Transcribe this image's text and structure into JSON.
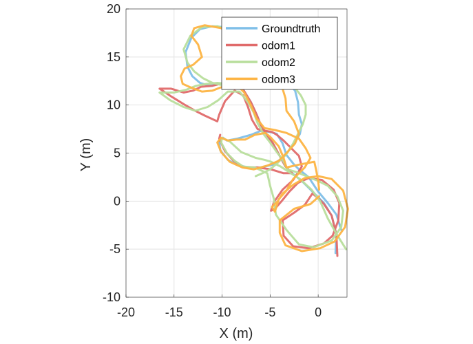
{
  "chart_data": {
    "type": "line",
    "xlabel": "X (m)",
    "ylabel": "Y (m)",
    "xlim": [
      -20,
      3
    ],
    "ylim": [
      -10,
      20
    ],
    "xticks": [
      -20,
      -15,
      -10,
      -5,
      0
    ],
    "yticks": [
      -10,
      -5,
      0,
      5,
      10,
      15,
      20
    ],
    "grid": true,
    "legend_position": "top-right",
    "series": [
      {
        "name": "Groundtruth",
        "color": "#7fbfe8",
        "points": [
          [
            1.8,
            -5.4
          ],
          [
            1.9,
            -3.5
          ],
          [
            1.4,
            -1.5
          ],
          [
            0.6,
            -0.2
          ],
          [
            0,
            0.4
          ],
          [
            -0.6,
            1
          ],
          [
            -1.6,
            2
          ],
          [
            -2.7,
            2.9
          ],
          [
            -3.4,
            3.6
          ],
          [
            -4.0,
            4.7
          ],
          [
            -4.7,
            6.0
          ],
          [
            -5.4,
            7.0
          ],
          [
            -6.0,
            8.0
          ],
          [
            -6.4,
            9.0
          ],
          [
            -7.0,
            10.3
          ],
          [
            -7.8,
            11.6
          ],
          [
            -8.6,
            12.0
          ],
          [
            -9.2,
            12.3
          ],
          [
            -10.2,
            12.2
          ],
          [
            -11.3,
            12.0
          ],
          [
            -12.3,
            12.3
          ],
          [
            -13.1,
            13.0
          ],
          [
            -13.6,
            14.0
          ],
          [
            -13.8,
            15.5
          ],
          [
            -13.2,
            17.0
          ],
          [
            -12.3,
            17.9
          ],
          [
            -11.0,
            18.2
          ],
          [
            -9.7,
            18.1
          ],
          [
            -8.6,
            17.4
          ],
          [
            -8.0,
            16.3
          ],
          [
            -7.5,
            15.0
          ],
          [
            -6.7,
            14.0
          ],
          [
            -5.6,
            13.0
          ],
          [
            -4.4,
            12.6
          ],
          [
            -3.2,
            12.3
          ],
          [
            -2.4,
            11.5
          ],
          [
            -2.1,
            10.3
          ],
          [
            -2.0,
            9.0
          ],
          [
            -1.7,
            8.0
          ],
          [
            -1.9,
            7.0
          ],
          [
            -2.6,
            5.8
          ],
          [
            -3.6,
            4.6
          ],
          [
            -4.7,
            3.8
          ],
          [
            -6.0,
            3.5
          ],
          [
            -7.3,
            3.5
          ],
          [
            -8.5,
            3.8
          ],
          [
            -9.4,
            4.3
          ],
          [
            -10.2,
            5.3
          ],
          [
            -10.3,
            6.3
          ],
          [
            -9.9,
            6.6
          ],
          [
            -9.5,
            6.3
          ],
          [
            -8.4,
            6.5
          ],
          [
            -7.0,
            6.9
          ],
          [
            -6.0,
            7.3
          ],
          [
            -5.0,
            7.2
          ],
          [
            -4.3,
            7.0
          ],
          [
            -3.7,
            6.0
          ],
          [
            -3.3,
            4.8
          ],
          [
            -2.5,
            3.8
          ],
          [
            -2.0,
            3.3
          ],
          [
            -1.0,
            2.5
          ],
          [
            0.0,
            1.0
          ],
          [
            1.0,
            -0.2
          ],
          [
            1.9,
            -1.4
          ],
          [
            2.4,
            -3.0
          ]
        ]
      },
      {
        "name": "odom1",
        "color": "#e06a6a",
        "points": [
          [
            2.0,
            -5.7
          ],
          [
            1.9,
            -3.5
          ],
          [
            1.4,
            -1.5
          ],
          [
            0.6,
            -0.3
          ],
          [
            0,
            0.3
          ],
          [
            -0.6,
            0.8
          ],
          [
            -1.4,
            -0.4
          ],
          [
            -2.5,
            -1.2
          ],
          [
            -3.7,
            -2.0
          ],
          [
            -3.6,
            -3.6
          ],
          [
            -2.6,
            -4.7
          ],
          [
            -1.0,
            -4.9
          ],
          [
            0.6,
            -4.4
          ],
          [
            1.5,
            -3.6
          ],
          [
            2.1,
            -2.0
          ],
          [
            2.2,
            -0.2
          ],
          [
            1.6,
            1.2
          ],
          [
            0.4,
            2.2
          ],
          [
            -1.0,
            2.4
          ],
          [
            -2.1,
            1.9
          ],
          [
            -3.0,
            1.0
          ],
          [
            -3.8,
            0
          ],
          [
            -4.5,
            -0.8
          ],
          [
            -4.9,
            -1.0
          ],
          [
            -4.6,
            -0.1
          ],
          [
            -3.7,
            1.2
          ],
          [
            -2.6,
            2.2
          ],
          [
            -1.7,
            3.6
          ],
          [
            -2.0,
            4.7
          ],
          [
            -2.8,
            5.5
          ],
          [
            -3.6,
            6.3
          ],
          [
            -4.3,
            6.9
          ],
          [
            -4.8,
            7.2
          ],
          [
            -5.4,
            7.3
          ],
          [
            -6.3,
            7.5
          ],
          [
            -6.9,
            8.5
          ],
          [
            -7.3,
            9.8
          ],
          [
            -7.8,
            11.0
          ],
          [
            -8.7,
            11.5
          ],
          [
            -9.7,
            10.4
          ],
          [
            -10.3,
            9.0
          ],
          [
            -10.5,
            8.3
          ],
          [
            -11.8,
            8.9
          ],
          [
            -12.8,
            9.4
          ],
          [
            -14.0,
            10.1
          ],
          [
            -15.3,
            10.9
          ],
          [
            -16.5,
            11.7
          ],
          [
            -15.3,
            11.7
          ],
          [
            -14.0,
            11.3
          ],
          [
            -13.0,
            11.5
          ],
          [
            -12.2,
            11.9
          ],
          [
            -11.0,
            12.0
          ],
          [
            -10.2,
            12.2
          ],
          [
            -9.2,
            12.3
          ],
          [
            -8.5,
            12.0
          ],
          [
            -7.8,
            11.6
          ],
          [
            -7.0,
            10.3
          ],
          [
            -6.4,
            9.0
          ],
          [
            -6.0,
            8.0
          ],
          [
            -5.4,
            7.0
          ],
          [
            -4.7,
            6.0
          ],
          [
            -4.0,
            4.7
          ],
          [
            -3.4,
            3.6
          ],
          [
            -2.7,
            2.9
          ],
          [
            -3.6,
            2.9
          ],
          [
            -4.9,
            3.3
          ],
          [
            -6.3,
            3.5
          ],
          [
            -7.7,
            3.5
          ],
          [
            -8.8,
            4.2
          ],
          [
            -9.7,
            5.2
          ],
          [
            -10.3,
            6.5
          ],
          [
            -10.2,
            6.9
          ]
        ]
      },
      {
        "name": "odom2",
        "color": "#b8de9c",
        "points": [
          [
            2.9,
            -5.0
          ],
          [
            1.9,
            -3.4
          ],
          [
            1.0,
            -1.8
          ],
          [
            0.2,
            0.0
          ],
          [
            -0.7,
            1.2
          ],
          [
            -1.9,
            2.3
          ],
          [
            -3.0,
            3.0
          ],
          [
            -3.9,
            3.6
          ],
          [
            -4.9,
            4.1
          ],
          [
            -5.6,
            4.3
          ],
          [
            -6.5,
            4.5
          ],
          [
            -8.0,
            5.1
          ],
          [
            -9.2,
            6.2
          ],
          [
            -10.0,
            6.6
          ],
          [
            -10.1,
            6.1
          ],
          [
            -9.5,
            5.0
          ],
          [
            -8.7,
            4.2
          ],
          [
            -7.8,
            3.6
          ],
          [
            -6.6,
            3.5
          ],
          [
            -5.3,
            2.9
          ],
          [
            -5.0,
            1.6
          ],
          [
            -4.6,
            0.2
          ],
          [
            -4.4,
            -1.4
          ],
          [
            -3.3,
            -3.0
          ],
          [
            -2.0,
            -4.5
          ],
          [
            -0.5,
            -4.8
          ],
          [
            1.4,
            -4.1
          ],
          [
            2.4,
            -2.7
          ],
          [
            2.6,
            -1.0
          ],
          [
            2.0,
            0.5
          ],
          [
            1.0,
            1.6
          ],
          [
            0.0,
            2.1
          ],
          [
            -1.0,
            2.5
          ],
          [
            -2.2,
            3.0
          ],
          [
            -3.2,
            3.3
          ],
          [
            -3.7,
            4.3
          ],
          [
            -4.3,
            5.1
          ],
          [
            -5.0,
            6.1
          ],
          [
            -5.7,
            7.0
          ],
          [
            -6.3,
            8.1
          ],
          [
            -6.7,
            9.2
          ],
          [
            -7.3,
            10.3
          ],
          [
            -8.2,
            11.4
          ],
          [
            -9.4,
            11.4
          ],
          [
            -10.4,
            10.5
          ],
          [
            -11.5,
            9.8
          ],
          [
            -12.8,
            9.4
          ],
          [
            -14.0,
            9.8
          ],
          [
            -15.4,
            10.5
          ],
          [
            -16.5,
            11.3
          ],
          [
            -15.0,
            11.3
          ],
          [
            -13.7,
            11.6
          ],
          [
            -12.7,
            12.0
          ],
          [
            -11.6,
            12.2
          ],
          [
            -10.5,
            12.3
          ],
          [
            -9.4,
            12.2
          ],
          [
            -8.5,
            12.0
          ],
          [
            -8.0,
            13.0
          ],
          [
            -7.9,
            14.7
          ],
          [
            -8.1,
            16.5
          ],
          [
            -9.0,
            17.7
          ],
          [
            -10.5,
            18.2
          ],
          [
            -12.1,
            18.1
          ],
          [
            -13.3,
            17.2
          ],
          [
            -14.0,
            15.8
          ],
          [
            -13.6,
            14.4
          ],
          [
            -12.9,
            13.5
          ],
          [
            -12.0,
            12.8
          ],
          [
            -11.0,
            12.3
          ],
          [
            -9.7,
            12.0
          ],
          [
            -8.6,
            11.8
          ],
          [
            -7.5,
            12.3
          ],
          [
            -6.6,
            13.0
          ],
          [
            -5.7,
            13.2
          ],
          [
            -4.5,
            12.8
          ],
          [
            -3.3,
            12.6
          ],
          [
            -2.5,
            11.9
          ],
          [
            -1.8,
            11.0
          ],
          [
            -1.3,
            10.0
          ],
          [
            -1.3,
            9.0
          ],
          [
            -1.6,
            8.0
          ],
          [
            -2.1,
            7.0
          ],
          [
            -2.6,
            6.0
          ],
          [
            -3.3,
            4.9
          ],
          [
            -4.2,
            4.0
          ],
          [
            -5.0,
            3.3
          ],
          [
            -5.8,
            2.9
          ],
          [
            -6.5,
            2.6
          ]
        ]
      },
      {
        "name": "odom3",
        "color": "#fdb443",
        "points": [
          [
            0.1,
            0.5
          ],
          [
            -0.8,
            -0.3
          ],
          [
            -2.5,
            -0.8
          ],
          [
            -4.0,
            -2.0
          ],
          [
            -4.0,
            -3.3
          ],
          [
            -3.4,
            -4.6
          ],
          [
            -1.7,
            -5.2
          ],
          [
            0.2,
            -4.9
          ],
          [
            1.7,
            -4.2
          ],
          [
            2.8,
            -2.7
          ],
          [
            3.1,
            -0.8
          ],
          [
            2.6,
            1.1
          ],
          [
            1.4,
            2.3
          ],
          [
            0.0,
            2.6
          ],
          [
            -1.4,
            2.4
          ],
          [
            -2.6,
            1.7
          ],
          [
            -3.7,
            0.8
          ],
          [
            -4.2,
            0.0
          ],
          [
            -4.8,
            -0.6
          ],
          [
            -4.5,
            -1.1
          ],
          [
            -4.1,
            0.2
          ],
          [
            -3.3,
            1.1
          ],
          [
            -2.6,
            2.3
          ],
          [
            -1.4,
            3.5
          ],
          [
            -0.8,
            4.5
          ],
          [
            -1.3,
            5.5
          ],
          [
            -2.0,
            6.5
          ],
          [
            -3.3,
            7.1
          ],
          [
            -4.5,
            7.4
          ],
          [
            -5.6,
            7.6
          ],
          [
            -6.4,
            8.6
          ],
          [
            -7.0,
            10.0
          ],
          [
            -7.7,
            11.3
          ],
          [
            -8.5,
            12.1
          ],
          [
            -9.7,
            12.0
          ],
          [
            -11.0,
            11.5
          ],
          [
            -12.1,
            11.4
          ],
          [
            -13.2,
            11.8
          ],
          [
            -14.1,
            12.2
          ],
          [
            -14.3,
            13.0
          ],
          [
            -13.9,
            13.8
          ],
          [
            -13.0,
            14.2
          ],
          [
            -12.1,
            15.0
          ],
          [
            -12.5,
            16.3
          ],
          [
            -13.2,
            17.2
          ],
          [
            -12.9,
            18.0
          ],
          [
            -11.8,
            18.3
          ],
          [
            -10.1,
            18.0
          ],
          [
            -8.9,
            17.3
          ],
          [
            -8.3,
            16.0
          ],
          [
            -8.1,
            14.4
          ],
          [
            -7.3,
            13.4
          ],
          [
            -6.0,
            13.0
          ],
          [
            -4.8,
            12.9
          ],
          [
            -3.8,
            12.0
          ],
          [
            -3.4,
            10.7
          ],
          [
            -3.3,
            9.4
          ],
          [
            -2.5,
            8.3
          ],
          [
            -2.0,
            7.0
          ],
          [
            -2.4,
            6.0
          ],
          [
            -3.3,
            5.0
          ],
          [
            -4.1,
            4.2
          ],
          [
            -5.3,
            3.7
          ],
          [
            -6.7,
            3.3
          ],
          [
            -7.9,
            3.5
          ],
          [
            -9.2,
            4.1
          ],
          [
            -10.1,
            5.1
          ],
          [
            -10.5,
            6.1
          ],
          [
            -10.1,
            6.6
          ],
          [
            -9.4,
            6.3
          ],
          [
            -8.5,
            6.4
          ],
          [
            -7.6,
            6.4
          ],
          [
            -6.6,
            6.9
          ],
          [
            -5.5,
            7.1
          ],
          [
            -4.9,
            6.6
          ],
          [
            -4.1,
            5.7
          ],
          [
            -3.6,
            4.5
          ],
          [
            -3.3,
            3.5
          ],
          [
            -2.0,
            3.8
          ],
          [
            -0.4,
            4.1
          ],
          [
            -0.2,
            3.2
          ],
          [
            0.0,
            2.1
          ],
          [
            0.1,
            1.2
          ]
        ]
      }
    ]
  }
}
